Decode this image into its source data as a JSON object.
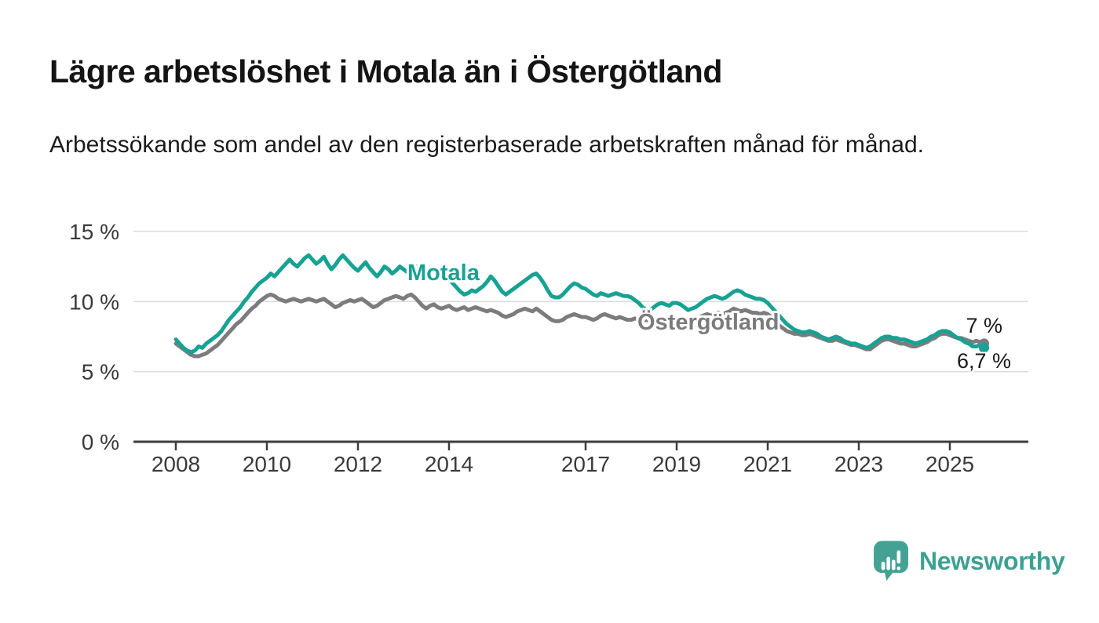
{
  "header": {
    "title": "Lägre arbetslöshet i Motala än i Östergötland",
    "subtitle": "Arbetssökande som andel av den registerbaserade arbetskraften månad för månad."
  },
  "chart_data": {
    "type": "line",
    "x_unit": "month",
    "x_start": "2008-01",
    "x_end": "2025-10",
    "ylim": [
      0,
      16.8
    ],
    "grid": "horizontal",
    "legend_position": "inline-labels-on-lines",
    "y_ticks": [
      {
        "value": 0,
        "label": "0 %"
      },
      {
        "value": 5,
        "label": "5 %"
      },
      {
        "value": 10,
        "label": "10 %"
      },
      {
        "value": 15,
        "label": "15 %"
      }
    ],
    "x_ticks": [
      {
        "value": 2008,
        "label": "2008"
      },
      {
        "value": 2010,
        "label": "2010"
      },
      {
        "value": 2012,
        "label": "2012"
      },
      {
        "value": 2014,
        "label": "2014"
      },
      {
        "value": 2017,
        "label": "2017"
      },
      {
        "value": 2019,
        "label": "2019"
      },
      {
        "value": 2021,
        "label": "2021"
      },
      {
        "value": 2023,
        "label": "2023"
      },
      {
        "value": 2025,
        "label": "2025"
      }
    ],
    "series": [
      {
        "name": "Östergötland",
        "color": "#7C7C7E",
        "end_value_label": "7 %",
        "values": [
          7.0,
          6.8,
          6.6,
          6.4,
          6.2,
          6.1,
          6.1,
          6.2,
          6.3,
          6.5,
          6.7,
          6.9,
          7.2,
          7.5,
          7.8,
          8.1,
          8.4,
          8.6,
          8.9,
          9.2,
          9.5,
          9.7,
          10.0,
          10.2,
          10.4,
          10.5,
          10.4,
          10.2,
          10.1,
          10.0,
          10.1,
          10.2,
          10.1,
          10.0,
          10.1,
          10.2,
          10.1,
          10.0,
          10.1,
          10.2,
          10.0,
          9.8,
          9.6,
          9.7,
          9.9,
          10.0,
          10.1,
          10.0,
          10.1,
          10.2,
          10.0,
          9.8,
          9.6,
          9.7,
          9.9,
          10.1,
          10.2,
          10.3,
          10.4,
          10.3,
          10.2,
          10.4,
          10.5,
          10.3,
          10.0,
          9.7,
          9.5,
          9.7,
          9.8,
          9.6,
          9.5,
          9.6,
          9.7,
          9.5,
          9.4,
          9.5,
          9.6,
          9.4,
          9.5,
          9.6,
          9.5,
          9.4,
          9.3,
          9.4,
          9.3,
          9.2,
          9.0,
          8.9,
          9.0,
          9.1,
          9.3,
          9.4,
          9.5,
          9.4,
          9.3,
          9.5,
          9.3,
          9.1,
          8.9,
          8.7,
          8.6,
          8.6,
          8.7,
          8.9,
          9.0,
          9.1,
          9.0,
          8.9,
          8.9,
          8.8,
          8.7,
          8.8,
          9.0,
          9.1,
          9.0,
          8.9,
          8.8,
          8.9,
          8.8,
          8.7,
          8.7,
          8.8,
          8.7,
          8.6,
          8.7,
          8.6,
          8.7,
          8.8,
          8.7,
          8.6,
          8.7,
          8.8,
          8.8,
          8.9,
          8.7,
          8.6,
          8.7,
          8.8,
          8.9,
          9.0,
          9.1,
          9.0,
          9.1,
          9.2,
          9.1,
          9.2,
          9.3,
          9.5,
          9.4,
          9.3,
          9.4,
          9.3,
          9.2,
          9.2,
          9.1,
          9.2,
          9.1,
          8.9,
          8.6,
          8.3,
          8.1,
          7.9,
          7.8,
          7.7,
          7.7,
          7.6,
          7.6,
          7.7,
          7.6,
          7.5,
          7.4,
          7.3,
          7.2,
          7.2,
          7.3,
          7.2,
          7.1,
          7.0,
          6.9,
          6.9,
          6.8,
          6.7,
          6.6,
          6.6,
          6.8,
          7.0,
          7.2,
          7.3,
          7.3,
          7.2,
          7.1,
          7.0,
          7.0,
          6.9,
          6.8,
          6.8,
          6.9,
          7.0,
          7.1,
          7.3,
          7.4,
          7.6,
          7.7,
          7.7,
          7.6,
          7.5,
          7.4,
          7.4,
          7.3,
          7.2,
          7.1,
          7.2,
          7.1,
          7.0
        ]
      },
      {
        "name": "Motala",
        "color": "#17A293",
        "end_value_label": "6,7 %",
        "values": [
          7.3,
          7.0,
          6.7,
          6.5,
          6.4,
          6.5,
          6.8,
          6.7,
          7.0,
          7.2,
          7.4,
          7.6,
          7.9,
          8.3,
          8.7,
          9.0,
          9.3,
          9.6,
          10.0,
          10.3,
          10.7,
          11.0,
          11.3,
          11.5,
          11.7,
          12.0,
          11.8,
          12.1,
          12.4,
          12.7,
          13.0,
          12.7,
          12.5,
          12.8,
          13.1,
          13.3,
          13.0,
          12.7,
          12.9,
          13.2,
          12.7,
          12.3,
          12.6,
          13.0,
          13.3,
          13.0,
          12.7,
          12.4,
          12.2,
          12.5,
          12.8,
          12.4,
          12.1,
          11.8,
          12.1,
          12.5,
          12.3,
          12.0,
          12.2,
          12.5,
          12.3,
          12.1,
          12.3,
          12.6,
          12.2,
          11.9,
          12.2,
          12.4,
          12.1,
          11.8,
          11.6,
          11.8,
          11.6,
          11.3,
          11.0,
          10.7,
          10.5,
          10.6,
          10.8,
          10.7,
          10.9,
          11.1,
          11.4,
          11.8,
          11.5,
          11.1,
          10.7,
          10.5,
          10.7,
          10.9,
          11.1,
          11.3,
          11.5,
          11.7,
          11.9,
          12.0,
          11.7,
          11.3,
          10.8,
          10.4,
          10.3,
          10.3,
          10.5,
          10.8,
          11.1,
          11.3,
          11.2,
          11.0,
          10.9,
          10.7,
          10.5,
          10.4,
          10.6,
          10.5,
          10.4,
          10.5,
          10.6,
          10.5,
          10.4,
          10.4,
          10.3,
          10.1,
          9.9,
          9.6,
          9.4,
          9.4,
          9.6,
          9.8,
          9.9,
          9.8,
          9.7,
          9.9,
          9.9,
          9.8,
          9.6,
          9.4,
          9.5,
          9.6,
          9.8,
          10.0,
          10.2,
          10.3,
          10.4,
          10.3,
          10.2,
          10.3,
          10.5,
          10.7,
          10.8,
          10.7,
          10.5,
          10.4,
          10.3,
          10.2,
          10.2,
          10.1,
          9.9,
          9.6,
          9.3,
          9.0,
          8.7,
          8.4,
          8.2,
          8.0,
          7.9,
          7.8,
          7.8,
          7.9,
          7.8,
          7.7,
          7.5,
          7.4,
          7.3,
          7.4,
          7.5,
          7.4,
          7.2,
          7.1,
          7.0,
          7.0,
          6.9,
          6.8,
          6.7,
          6.8,
          7.0,
          7.2,
          7.4,
          7.5,
          7.5,
          7.4,
          7.4,
          7.3,
          7.3,
          7.2,
          7.1,
          7.0,
          7.1,
          7.2,
          7.3,
          7.5,
          7.6,
          7.8,
          7.9,
          7.9,
          7.8,
          7.6,
          7.4,
          7.3,
          7.1,
          7.0,
          6.8,
          6.8,
          6.9,
          6.7
        ]
      }
    ]
  },
  "branding": {
    "logo_text": "Newsworthy",
    "brand_color": "#44A294",
    "brand_text_color": "#3CA192"
  },
  "style": {
    "grid_color": "#dcdcdc",
    "axis_color": "#3d3d3d",
    "tick_label_color": "#3a3a3a"
  }
}
